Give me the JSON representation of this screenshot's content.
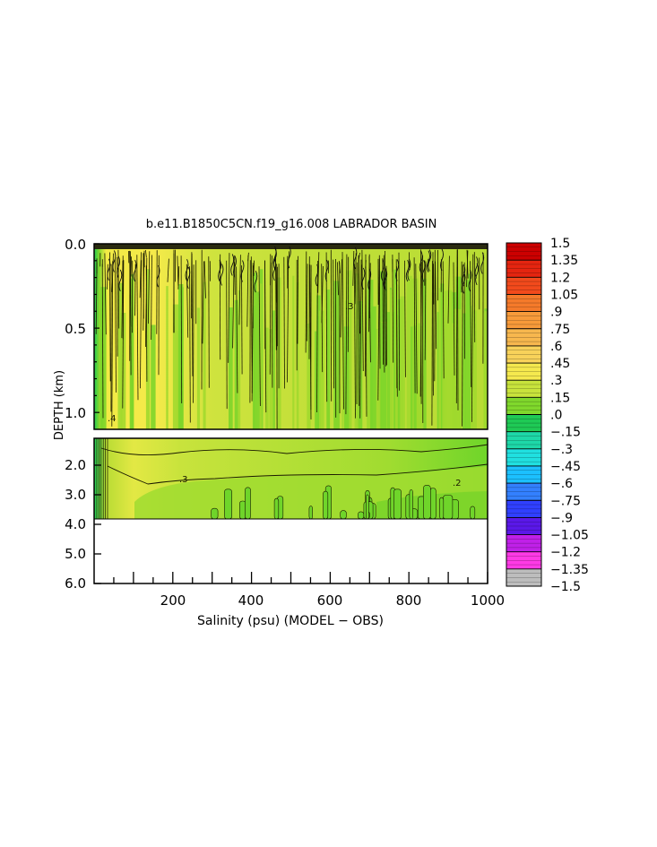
{
  "chart_data": {
    "type": "heatmap",
    "title": "b.e11.B1850C5CN.f19_g16.008 LABRADOR BASIN",
    "xlabel": "Salinity (psu) (MODEL − OBS)",
    "ylabel": "DEPTH (km)",
    "xlim": [
      0,
      1000
    ],
    "x_ticks": [
      "200",
      "400",
      "600",
      "800",
      "1000"
    ],
    "upper_panel": {
      "ylim": [
        0.0,
        1.1
      ],
      "y_ticks": [
        "0.0",
        "0.5",
        "1.0"
      ]
    },
    "lower_panel": {
      "ylim": [
        1.1,
        6.0
      ],
      "y_ticks": [
        "2.0",
        "3.0",
        "4.0",
        "5.0",
        "6.0"
      ]
    },
    "data_bottom_depth": 3.9,
    "contour_labels": [
      ".3",
      ".2",
      ".4"
    ],
    "colorbar": {
      "levels": [
        "1.5",
        "1.35",
        "1.2",
        "1.05",
        ".9",
        ".75",
        ".6",
        ".45",
        ".3",
        ".15",
        ".0",
        "−.15",
        "−.3",
        "−.45",
        "−.6",
        "−.75",
        "−.9",
        "−1.05",
        "−1.2",
        "−1.35",
        "−1.5"
      ],
      "colors": [
        "#cc0000",
        "#e52510",
        "#f24a1c",
        "#f57a2a",
        "#f79a3a",
        "#f7b74e",
        "#f8d25a",
        "#f5e94e",
        "#c8e33c",
        "#80d82c",
        "#1fca55",
        "#1ed8a8",
        "#20e0e0",
        "#1cc0ff",
        "#3380ff",
        "#3040ff",
        "#5a18e8",
        "#c020e8",
        "#ff3ae6",
        "#bdbdbd",
        "#808080"
      ]
    }
  }
}
